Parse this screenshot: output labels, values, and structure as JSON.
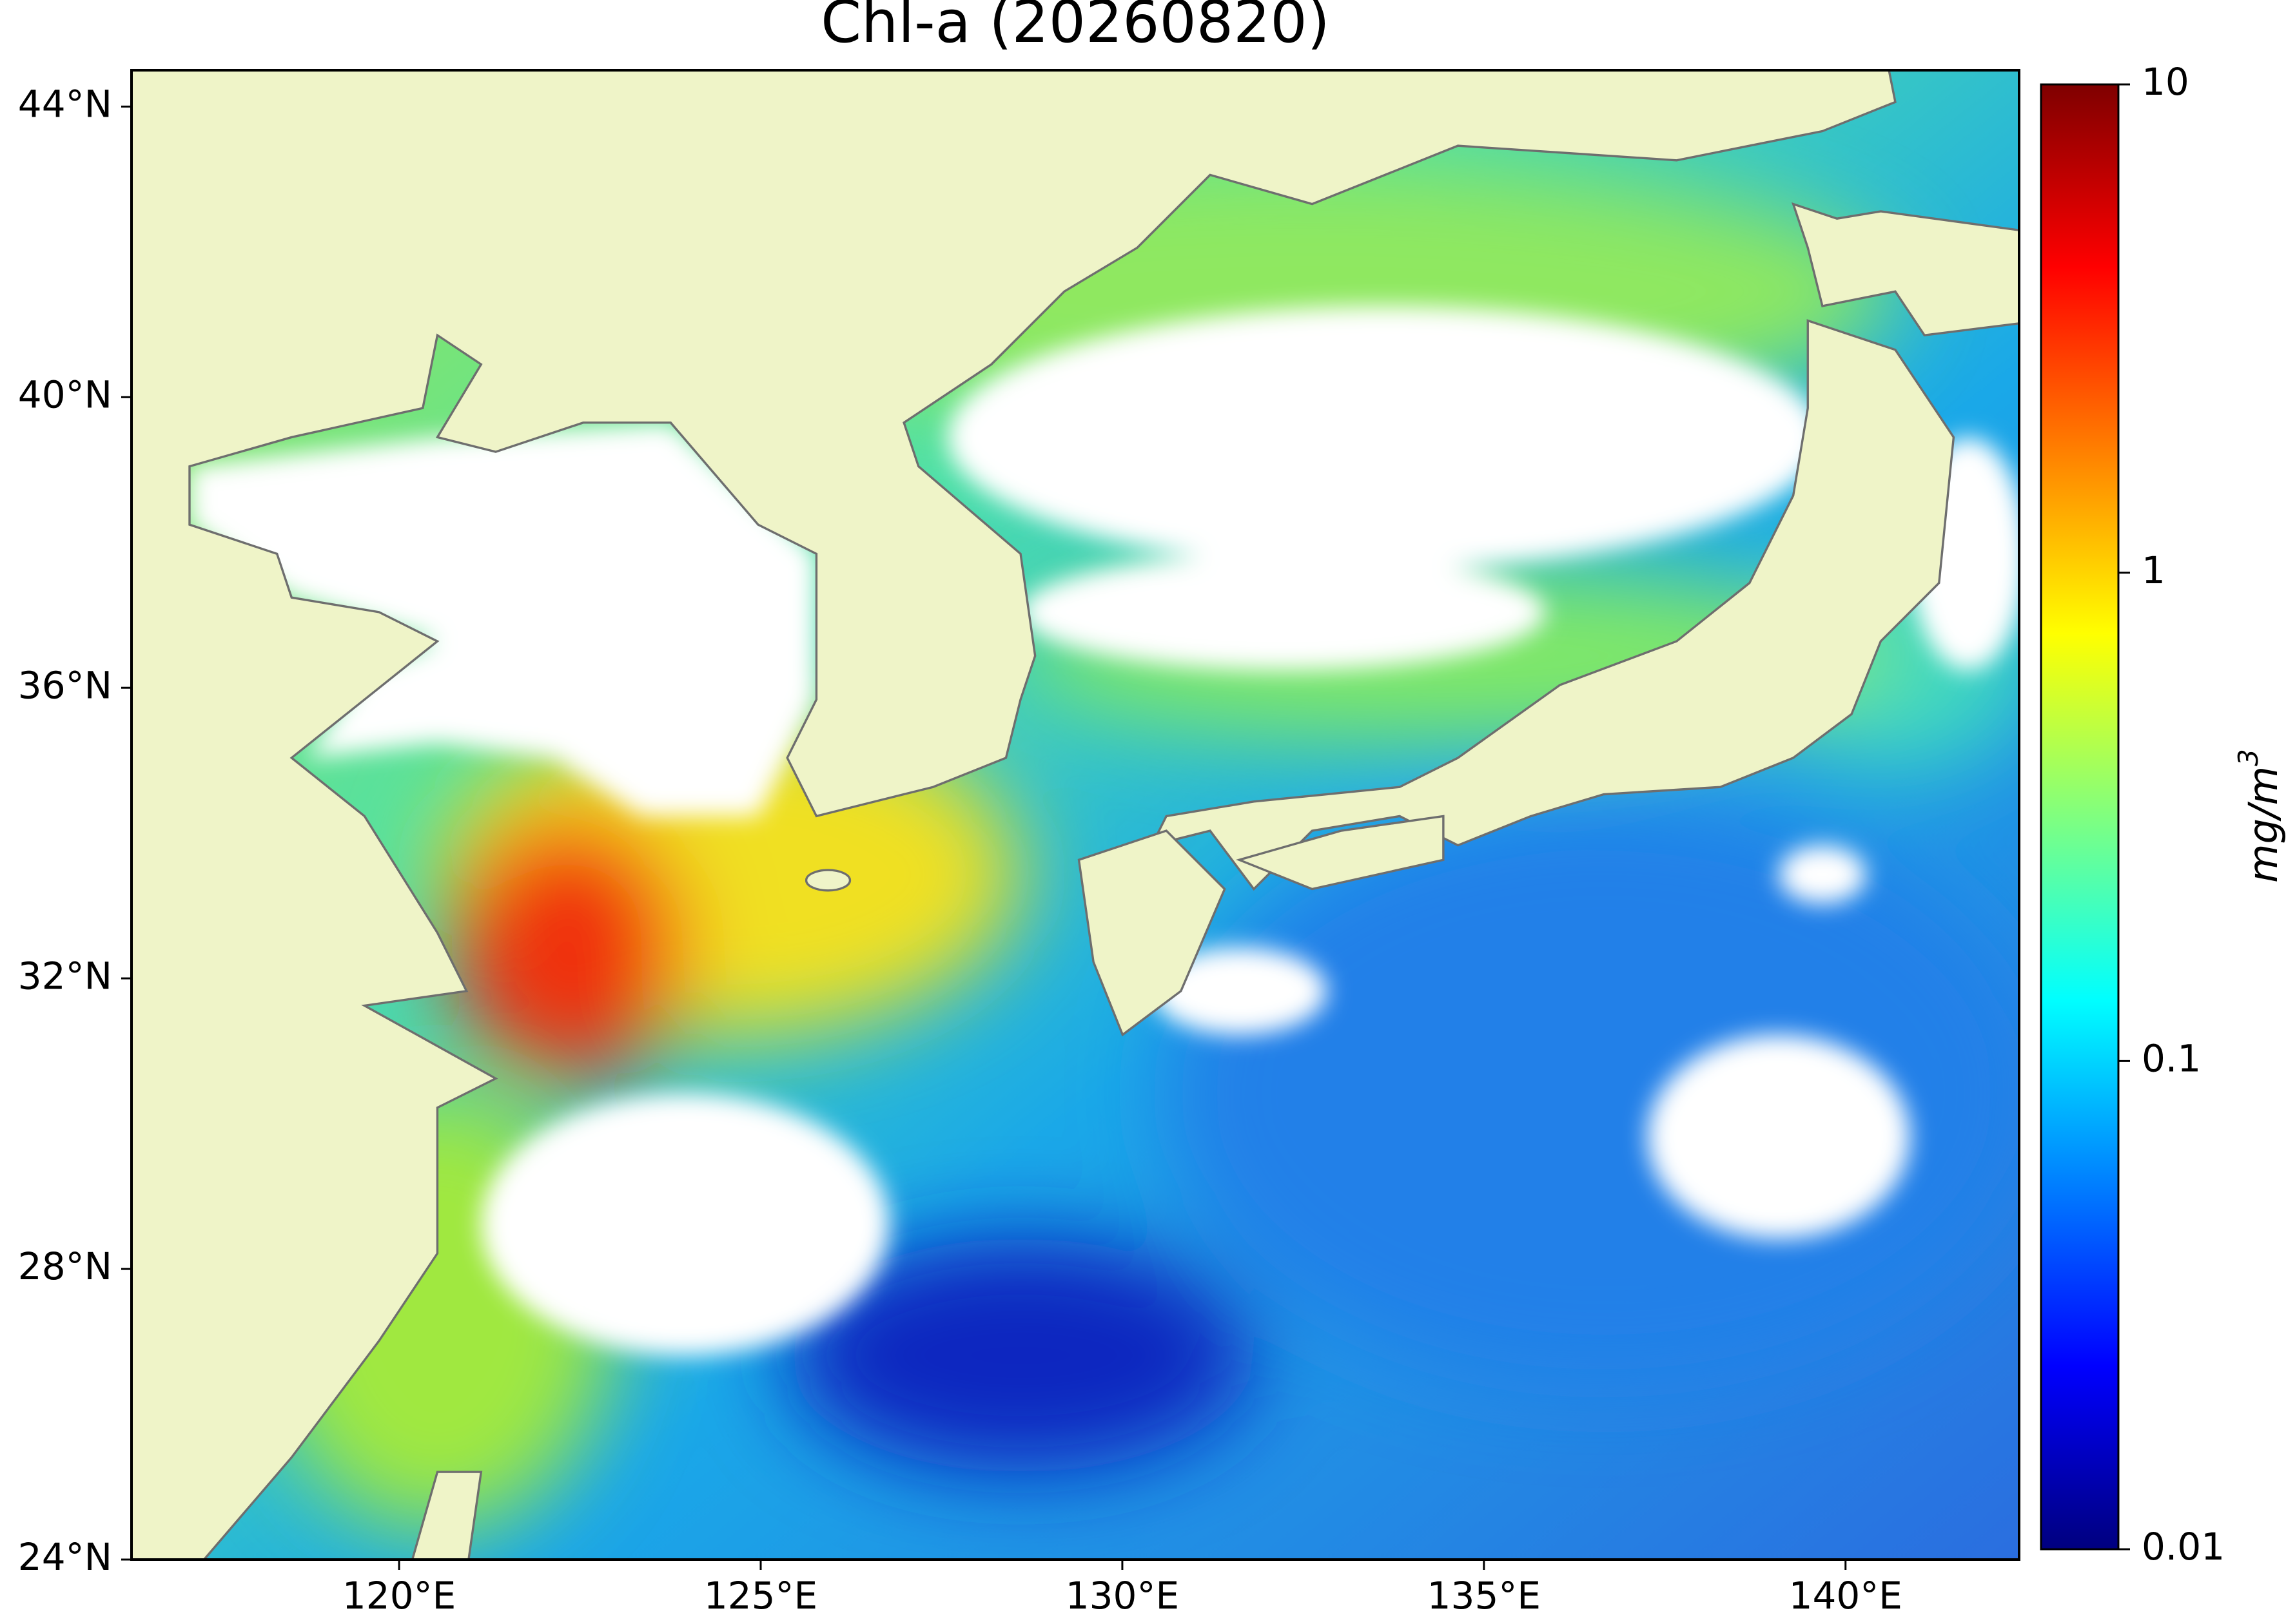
{
  "map": {
    "title": "Chl-a (20260820)",
    "xlim": [
      116.3,
      142.4
    ],
    "ylim": [
      24,
      44.5
    ],
    "xticks": [
      {
        "value": 120,
        "label": "120°E"
      },
      {
        "value": 125,
        "label": "125°E"
      },
      {
        "value": 130,
        "label": "130°E"
      },
      {
        "value": 135,
        "label": "135°E"
      },
      {
        "value": 140,
        "label": "140°E"
      }
    ],
    "yticks": [
      {
        "value": 24,
        "label": "24°N"
      },
      {
        "value": 28,
        "label": "28°N"
      },
      {
        "value": 32,
        "label": "32°N"
      },
      {
        "value": 36,
        "label": "36°N"
      },
      {
        "value": 40,
        "label": "40°N"
      },
      {
        "value": 44,
        "label": "44°N"
      }
    ],
    "colorbar": {
      "log": true,
      "lim": [
        0.01,
        10
      ],
      "ticks": [
        0.01,
        0.1,
        1,
        10
      ],
      "label": [
        "mg/m",
        "3"
      ]
    }
  }
}
